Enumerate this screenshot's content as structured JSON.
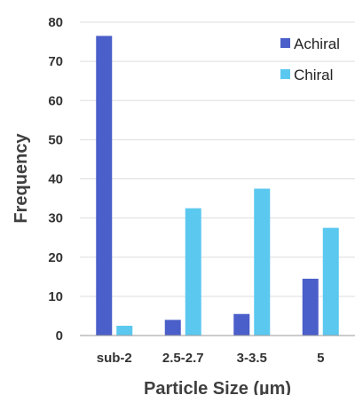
{
  "chart_data": {
    "type": "bar",
    "title": "",
    "xlabel": "Particle Size (µm)",
    "ylabel": "Frequency",
    "ylim": [
      0,
      80
    ],
    "yticks": [
      0,
      10,
      20,
      30,
      40,
      50,
      60,
      70,
      80
    ],
    "grid": true,
    "legend_position": "top-right",
    "categories": [
      "sub-2",
      "2.5-2.7",
      "3-3.5",
      "5"
    ],
    "series": [
      {
        "name": "Achiral",
        "color": "#4a5fc9",
        "values": [
          76.5,
          4,
          5.5,
          14.5
        ]
      },
      {
        "name": "Chiral",
        "color": "#5bc8ef",
        "values": [
          2.5,
          32.5,
          37.5,
          27.5
        ]
      }
    ]
  }
}
